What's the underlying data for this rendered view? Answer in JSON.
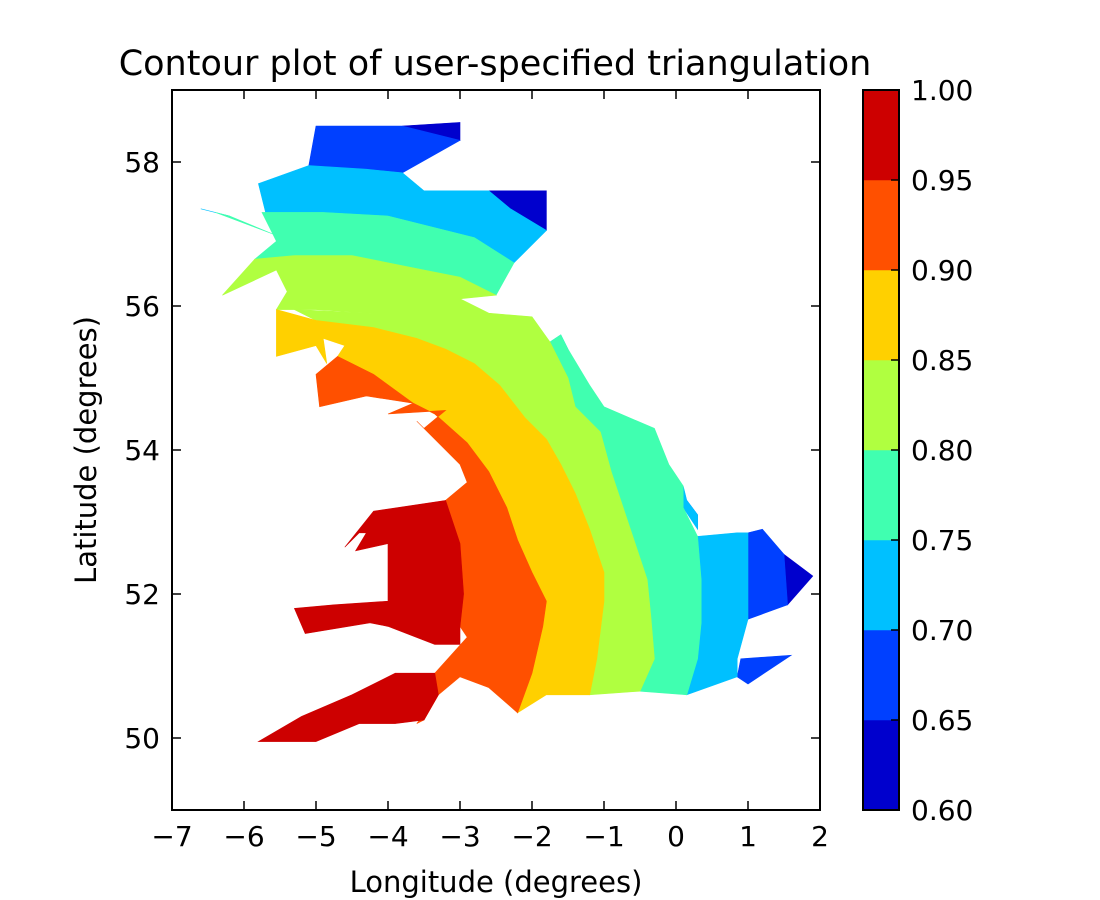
{
  "chart_data": {
    "type": "contourf",
    "title": "Contour plot of user-specified triangulation",
    "xlabel": "Longitude (degrees)",
    "ylabel": "Latitude (degrees)",
    "xlim": [
      -7,
      2
    ],
    "ylim": [
      49,
      59
    ],
    "xticks": [
      -7,
      -6,
      -5,
      -4,
      -3,
      -2,
      -1,
      0,
      1,
      2
    ],
    "xtick_labels": [
      "−7",
      "−6",
      "−5",
      "−4",
      "−3",
      "−2",
      "−1",
      "0",
      "1",
      "2"
    ],
    "yticks": [
      50,
      52,
      54,
      56,
      58
    ],
    "ytick_labels": [
      "50",
      "52",
      "54",
      "56",
      "58"
    ],
    "grid": false,
    "colormap": "jet",
    "colorbar": {
      "levels": [
        0.6,
        0.65,
        0.7,
        0.75,
        0.8,
        0.85,
        0.9,
        0.95,
        1.0
      ],
      "tick_labels": [
        "0.60",
        "0.65",
        "0.70",
        "0.75",
        "0.80",
        "0.85",
        "0.90",
        "0.95",
        "1.00"
      ],
      "colors": [
        "#0000cd",
        "#0040ff",
        "#00c0ff",
        "#40ffb0",
        "#b0ff40",
        "#ffd000",
        "#ff5000",
        "#cd0000"
      ]
    },
    "regions": [
      {
        "level": 0.625,
        "polygons": [
          [
            [
              -3.0,
              58.55
            ],
            [
              -3.0,
              58.3
            ],
            [
              -3.8,
              58.5
            ]
          ],
          [
            [
              -1.8,
              57.6
            ],
            [
              -1.8,
              57.05
            ],
            [
              -2.25,
              57.3
            ],
            [
              -2.6,
              57.6
            ]
          ],
          [
            [
              1.9,
              52.25
            ],
            [
              1.55,
              51.85
            ],
            [
              1.5,
              52.55
            ]
          ]
        ]
      },
      {
        "level": 0.675,
        "polygons": [
          [
            [
              -5.0,
              58.5
            ],
            [
              -3.8,
              58.5
            ],
            [
              -3.0,
              58.3
            ],
            [
              -3.8,
              57.85
            ],
            [
              -4.3,
              57.9
            ],
            [
              -5.1,
              57.95
            ]
          ],
          [
            [
              -2.6,
              57.6
            ],
            [
              -2.25,
              57.3
            ],
            [
              -1.8,
              57.05
            ],
            [
              -2.3,
              57.35
            ]
          ],
          [
            [
              1.5,
              52.55
            ],
            [
              1.55,
              51.85
            ],
            [
              1.0,
              51.65
            ],
            [
              1.0,
              52.85
            ],
            [
              1.2,
              52.9
            ]
          ],
          [
            [
              0.9,
              51.1
            ],
            [
              1.6,
              51.15
            ],
            [
              1.0,
              50.75
            ],
            [
              0.85,
              50.85
            ]
          ],
          [
            [
              0.15,
              53.3
            ],
            [
              0.3,
              53.1
            ],
            [
              0.3,
              52.9
            ]
          ]
        ]
      },
      {
        "level": 0.725,
        "polygons": [
          [
            [
              -5.8,
              57.7
            ],
            [
              -5.1,
              57.95
            ],
            [
              -4.3,
              57.9
            ],
            [
              -3.8,
              57.85
            ],
            [
              -3.5,
              57.6
            ],
            [
              -2.6,
              57.6
            ],
            [
              -2.3,
              57.35
            ],
            [
              -1.8,
              57.05
            ],
            [
              -2.25,
              56.6
            ],
            [
              -2.8,
              56.95
            ],
            [
              -4.0,
              57.25
            ],
            [
              -4.9,
              57.3
            ],
            [
              -5.7,
              57.3
            ]
          ],
          [
            [
              0.3,
              52.8
            ],
            [
              0.85,
              52.85
            ],
            [
              1.0,
              52.85
            ],
            [
              1.0,
              51.65
            ],
            [
              0.85,
              51.1
            ],
            [
              0.85,
              50.85
            ],
            [
              0.15,
              50.6
            ],
            [
              0.3,
              51.1
            ],
            [
              0.35,
              51.6
            ],
            [
              0.35,
              52.2
            ]
          ],
          [
            [
              0.1,
              53.5
            ],
            [
              0.15,
              53.3
            ],
            [
              0.3,
              53.1
            ],
            [
              0.3,
              52.9
            ],
            [
              0.1,
              53.2
            ]
          ],
          [
            [
              -1.75,
              55.5
            ],
            [
              -1.5,
              55.4
            ],
            [
              -1.6,
              55.6
            ]
          ],
          [
            [
              -6.6,
              57.35
            ],
            [
              -6.4,
              57.3
            ],
            [
              -6.2,
              57.25
            ]
          ]
        ]
      },
      {
        "level": 0.775,
        "polygons": [
          [
            [
              -5.75,
              57.3
            ],
            [
              -4.9,
              57.3
            ],
            [
              -4.0,
              57.25
            ],
            [
              -2.8,
              56.95
            ],
            [
              -2.25,
              56.6
            ],
            [
              -2.5,
              56.15
            ],
            [
              -3.0,
              56.4
            ],
            [
              -3.5,
              56.5
            ],
            [
              -4.5,
              56.7
            ],
            [
              -5.3,
              56.7
            ],
            [
              -5.85,
              56.65
            ],
            [
              -5.55,
              56.9
            ],
            [
              -5.6,
              57.0
            ]
          ],
          [
            [
              -6.4,
              57.3
            ],
            [
              -5.6,
              57.0
            ],
            [
              -6.2,
              57.25
            ]
          ],
          [
            [
              -0.3,
              54.3
            ],
            [
              -0.1,
              53.8
            ],
            [
              0.1,
              53.5
            ],
            [
              0.1,
              53.2
            ],
            [
              0.3,
              52.8
            ],
            [
              0.35,
              52.2
            ],
            [
              0.35,
              51.6
            ],
            [
              0.3,
              51.1
            ],
            [
              0.15,
              50.6
            ],
            [
              -0.5,
              50.65
            ],
            [
              -0.3,
              51.1
            ],
            [
              -0.35,
              51.7
            ],
            [
              -0.4,
              52.2
            ],
            [
              -0.6,
              52.8
            ],
            [
              -0.7,
              53.1
            ],
            [
              -0.9,
              53.7
            ],
            [
              -1.05,
              54.25
            ],
            [
              -1.4,
              54.6
            ],
            [
              -1.5,
              55.0
            ],
            [
              -1.75,
              55.5
            ],
            [
              -1.6,
              55.6
            ],
            [
              -1.5,
              55.4
            ],
            [
              -1.2,
              54.9
            ],
            [
              -1.0,
              54.6
            ]
          ]
        ]
      },
      {
        "level": 0.825,
        "polygons": [
          [
            [
              -5.85,
              56.65
            ],
            [
              -5.3,
              56.7
            ],
            [
              -4.5,
              56.7
            ],
            [
              -3.5,
              56.5
            ],
            [
              -3.0,
              56.4
            ],
            [
              -2.5,
              56.15
            ],
            [
              -3.0,
              56.1
            ],
            [
              -3.3,
              55.95
            ],
            [
              -4.2,
              55.9
            ],
            [
              -5.0,
              55.95
            ],
            [
              -5.55,
              55.95
            ],
            [
              -5.4,
              56.2
            ],
            [
              -5.55,
              56.5
            ],
            [
              -6.3,
              56.15
            ]
          ],
          [
            [
              -3.0,
              56.1
            ],
            [
              -2.6,
              55.9
            ],
            [
              -2.0,
              55.85
            ],
            [
              -1.75,
              55.5
            ],
            [
              -1.5,
              55.0
            ],
            [
              -1.4,
              54.6
            ],
            [
              -1.05,
              54.25
            ],
            [
              -0.9,
              53.7
            ],
            [
              -0.7,
              53.1
            ],
            [
              -0.6,
              52.8
            ],
            [
              -0.4,
              52.2
            ],
            [
              -0.35,
              51.7
            ],
            [
              -0.3,
              51.1
            ],
            [
              -0.5,
              50.65
            ],
            [
              -1.2,
              50.6
            ],
            [
              -1.1,
              51.1
            ],
            [
              -1.05,
              51.5
            ],
            [
              -1.0,
              51.9
            ],
            [
              -1.0,
              52.3
            ],
            [
              -1.2,
              52.9
            ],
            [
              -1.4,
              53.4
            ],
            [
              -1.6,
              53.8
            ],
            [
              -1.8,
              54.15
            ],
            [
              -2.1,
              54.45
            ],
            [
              -2.45,
              54.9
            ],
            [
              -2.8,
              55.2
            ],
            [
              -3.2,
              55.4
            ],
            [
              -3.6,
              55.55
            ],
            [
              -4.2,
              55.7
            ],
            [
              -5.0,
              55.8
            ],
            [
              -5.3,
              55.95
            ],
            [
              -4.2,
              55.9
            ],
            [
              -3.3,
              55.95
            ]
          ]
        ]
      },
      {
        "level": 0.875,
        "polygons": [
          [
            [
              -5.55,
              55.95
            ],
            [
              -5.0,
              55.8
            ],
            [
              -4.2,
              55.7
            ],
            [
              -3.6,
              55.55
            ],
            [
              -3.2,
              55.4
            ],
            [
              -2.8,
              55.2
            ],
            [
              -2.45,
              54.9
            ],
            [
              -2.1,
              54.45
            ],
            [
              -1.8,
              54.15
            ],
            [
              -1.6,
              53.8
            ],
            [
              -1.4,
              53.4
            ],
            [
              -1.2,
              52.9
            ],
            [
              -1.0,
              52.3
            ],
            [
              -1.0,
              51.9
            ],
            [
              -1.05,
              51.5
            ],
            [
              -1.1,
              51.1
            ],
            [
              -1.2,
              50.6
            ],
            [
              -1.8,
              50.6
            ],
            [
              -2.2,
              50.35
            ],
            [
              -2.0,
              50.9
            ],
            [
              -1.85,
              51.55
            ],
            [
              -1.8,
              51.9
            ],
            [
              -2.0,
              52.3
            ],
            [
              -2.2,
              52.75
            ],
            [
              -2.35,
              53.2
            ],
            [
              -2.6,
              53.7
            ],
            [
              -2.9,
              54.1
            ],
            [
              -3.35,
              54.5
            ],
            [
              -3.65,
              54.65
            ],
            [
              -4.2,
              55.05
            ],
            [
              -4.7,
              55.3
            ],
            [
              -4.6,
              55.45
            ],
            [
              -4.9,
              55.55
            ],
            [
              -4.85,
              55.2
            ],
            [
              -5.0,
              55.45
            ],
            [
              -5.55,
              55.3
            ],
            [
              -5.55,
              55.6
            ],
            [
              -5.55,
              55.95
            ]
          ]
        ]
      },
      {
        "level": 0.925,
        "polygons": [
          [
            [
              -4.7,
              55.3
            ],
            [
              -4.2,
              55.05
            ],
            [
              -3.65,
              54.65
            ],
            [
              -4.3,
              54.75
            ],
            [
              -4.95,
              54.6
            ],
            [
              -5.0,
              55.05
            ]
          ],
          [
            [
              -3.65,
              54.65
            ],
            [
              -3.35,
              54.5
            ],
            [
              -2.9,
              54.1
            ],
            [
              -2.6,
              53.7
            ],
            [
              -2.35,
              53.2
            ],
            [
              -2.2,
              52.75
            ],
            [
              -2.0,
              52.3
            ],
            [
              -1.8,
              51.9
            ],
            [
              -1.85,
              51.55
            ],
            [
              -2.0,
              50.9
            ],
            [
              -2.2,
              50.35
            ],
            [
              -2.6,
              50.7
            ],
            [
              -3.0,
              50.85
            ],
            [
              -3.3,
              50.6
            ],
            [
              -3.35,
              50.9
            ],
            [
              -2.9,
              51.4
            ],
            [
              -3.0,
              51.55
            ],
            [
              -2.95,
              52.0
            ],
            [
              -3.0,
              52.7
            ],
            [
              -3.2,
              53.3
            ],
            [
              -2.9,
              53.55
            ],
            [
              -3.0,
              53.8
            ],
            [
              -3.3,
              54.1
            ],
            [
              -3.6,
              54.4
            ],
            [
              -3.5,
              54.3
            ],
            [
              -3.2,
              54.55
            ],
            [
              -4.0,
              54.5
            ]
          ],
          [
            [
              -3.5,
              50.25
            ],
            [
              -3.6,
              50.2
            ],
            [
              -3.3,
              50.6
            ]
          ]
        ]
      },
      {
        "level": 0.975,
        "polygons": [
          [
            [
              -3.2,
              53.3
            ],
            [
              -3.0,
              52.7
            ],
            [
              -2.95,
              52.0
            ],
            [
              -3.0,
              51.55
            ],
            [
              -3.0,
              51.3
            ],
            [
              -3.35,
              51.3
            ],
            [
              -4.0,
              51.55
            ],
            [
              -4.25,
              51.6
            ],
            [
              -5.15,
              51.45
            ],
            [
              -5.3,
              51.8
            ],
            [
              -4.75,
              51.85
            ],
            [
              -4.0,
              51.9
            ],
            [
              -4.0,
              52.2
            ],
            [
              -4.0,
              52.7
            ],
            [
              -4.45,
              52.6
            ],
            [
              -4.3,
              52.85
            ],
            [
              -4.4,
              52.85
            ],
            [
              -4.6,
              52.65
            ],
            [
              -4.2,
              53.15
            ]
          ],
          [
            [
              -3.35,
              50.9
            ],
            [
              -3.3,
              50.6
            ],
            [
              -3.5,
              50.25
            ],
            [
              -3.9,
              50.2
            ],
            [
              -4.4,
              50.2
            ],
            [
              -5.0,
              49.95
            ],
            [
              -5.8,
              49.95
            ],
            [
              -5.2,
              50.3
            ],
            [
              -4.5,
              50.6
            ],
            [
              -3.9,
              50.9
            ]
          ]
        ]
      }
    ]
  }
}
